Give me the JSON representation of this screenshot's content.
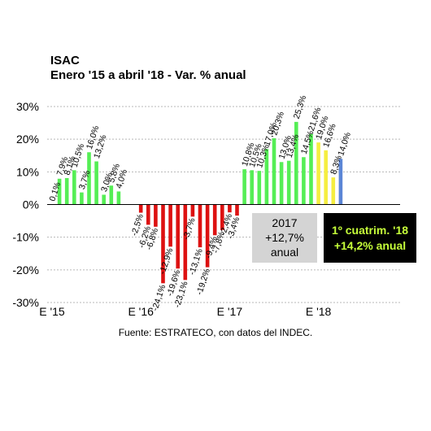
{
  "chart_data": {
    "type": "bar",
    "title": "ISAC",
    "subtitle": "Enero '15 a abril '18 - Var. % anual",
    "source": "Fuente: ESTRATECO, con datos del INDEC.",
    "ylim": [
      -30,
      30
    ],
    "y_ticks": [
      30,
      20,
      10,
      0,
      -10,
      -20,
      -30
    ],
    "y_tick_labels": [
      "30%",
      "20%",
      "10%",
      "0%",
      "-10%",
      "-20%",
      "-30%"
    ],
    "x_tick_labels": [
      {
        "label": "E '15",
        "index": 0
      },
      {
        "label": "E '16",
        "index": 12
      },
      {
        "label": "E '17",
        "index": 24
      },
      {
        "label": "E '18",
        "index": 36
      }
    ],
    "grid": true,
    "colors": {
      "positive": "#55ee55",
      "negative": "#dd1111",
      "yellow": "#f5ee40",
      "blue": "#5b86d6"
    },
    "values": [
      0.1,
      7.9,
      8.1,
      10.5,
      3.7,
      16.0,
      13.2,
      3.0,
      5.8,
      4.0,
      0,
      0,
      -2.5,
      -6.2,
      -6.8,
      -24.1,
      -12.9,
      -19.6,
      -23.1,
      -3.7,
      -13.1,
      -19.2,
      -9.4,
      -7.8,
      -2.4,
      -3.4,
      10.8,
      10.5,
      10.3,
      17.0,
      20.3,
      13.0,
      13.4,
      25.3,
      14.5,
      21.6,
      19.0,
      16.6,
      8.3,
      14.0
    ],
    "labels": [
      "0,1%",
      "7,9%",
      "8,1%",
      "10,5%",
      "3,7%",
      "16,0%",
      "13,2%",
      "3,0%",
      "5,8%",
      "4,0%",
      "",
      "",
      "-2,5%",
      "-6,2%",
      "-6,8%",
      "-24,1%",
      "-12,9%",
      "-19,6%",
      "-23,1%",
      "-3,7%",
      "-13,1%",
      "-19,2%",
      "-9,4%",
      "-7,8%",
      "-2,4%",
      "-3,4%",
      "10,8%",
      "10,5%",
      "10,3%",
      "17,0%",
      "20,3%",
      "13,0%",
      "13,4%",
      "25,3%",
      "14,5%",
      "21,6%",
      "19,0%",
      "16,6%",
      "8,3%",
      "14,0%"
    ],
    "bar_color_keys": [
      "positive",
      "positive",
      "positive",
      "positive",
      "positive",
      "positive",
      "positive",
      "positive",
      "positive",
      "positive",
      "positive",
      "positive",
      "negative",
      "negative",
      "negative",
      "negative",
      "negative",
      "negative",
      "negative",
      "negative",
      "negative",
      "negative",
      "negative",
      "negative",
      "negative",
      "negative",
      "positive",
      "positive",
      "positive",
      "positive",
      "positive",
      "positive",
      "positive",
      "positive",
      "positive",
      "positive",
      "yellow",
      "yellow",
      "yellow",
      "blue"
    ],
    "annotations": [
      {
        "lines": [
          "2017",
          "+12,7%",
          "anual"
        ],
        "style": "gray"
      },
      {
        "lines": [
          "1º cuatrim. '18",
          "+14,2% anual"
        ],
        "style": "black"
      }
    ]
  }
}
